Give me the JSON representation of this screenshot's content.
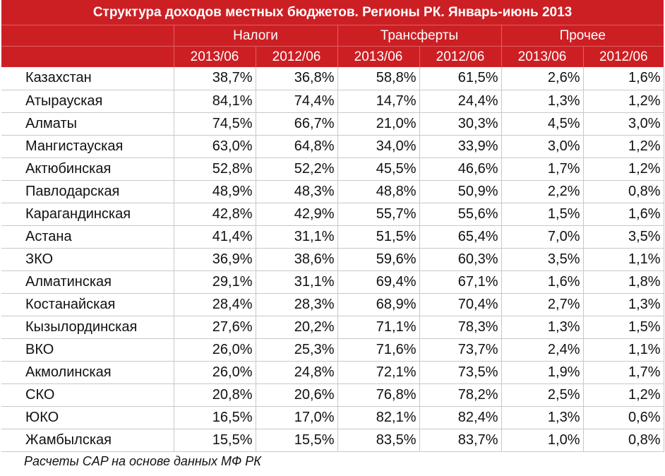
{
  "chart_data": {
    "type": "table",
    "title": "Структура доходов местных бюджетов. Регионы РК. Январь-июнь 2013",
    "groups": [
      "Налоги",
      "Трансферты",
      "Прочее"
    ],
    "periods": [
      "2013/06",
      "2012/06"
    ],
    "columns": [
      "2013/06",
      "2012/06",
      "2013/06",
      "2012/06",
      "2013/06",
      "2012/06"
    ],
    "rows": [
      {
        "region": "Казахстан",
        "values": [
          "38,7%",
          "36,8%",
          "58,8%",
          "61,5%",
          "2,6%",
          "1,6%"
        ]
      },
      {
        "region": "Атырауская",
        "values": [
          "84,1%",
          "74,4%",
          "14,7%",
          "24,4%",
          "1,3%",
          "1,2%"
        ]
      },
      {
        "region": "Алматы",
        "values": [
          "74,5%",
          "66,7%",
          "21,0%",
          "30,3%",
          "4,5%",
          "3,0%"
        ]
      },
      {
        "region": "Мангистауская",
        "values": [
          "63,0%",
          "64,8%",
          "34,0%",
          "33,9%",
          "3,0%",
          "1,2%"
        ]
      },
      {
        "region": "Актюбинская",
        "values": [
          "52,8%",
          "52,2%",
          "45,5%",
          "46,6%",
          "1,7%",
          "1,2%"
        ]
      },
      {
        "region": "Павлодарская",
        "values": [
          "48,9%",
          "48,3%",
          "48,8%",
          "50,9%",
          "2,2%",
          "0,8%"
        ]
      },
      {
        "region": "Карагандинская",
        "values": [
          "42,8%",
          "42,9%",
          "55,7%",
          "55,6%",
          "1,5%",
          "1,6%"
        ]
      },
      {
        "region": "Астана",
        "values": [
          "41,4%",
          "31,1%",
          "51,5%",
          "65,4%",
          "7,0%",
          "3,5%"
        ]
      },
      {
        "region": "ЗКО",
        "values": [
          "36,9%",
          "38,6%",
          "59,6%",
          "60,3%",
          "3,5%",
          "1,1%"
        ]
      },
      {
        "region": "Алматинская",
        "values": [
          "29,1%",
          "31,1%",
          "69,4%",
          "67,1%",
          "1,6%",
          "1,8%"
        ]
      },
      {
        "region": "Костанайская",
        "values": [
          "28,4%",
          "28,3%",
          "68,9%",
          "70,4%",
          "2,7%",
          "1,3%"
        ]
      },
      {
        "region": "Кызылординская",
        "values": [
          "27,6%",
          "20,2%",
          "71,1%",
          "78,3%",
          "1,3%",
          "1,5%"
        ]
      },
      {
        "region": "ВКО",
        "values": [
          "26,0%",
          "25,3%",
          "71,6%",
          "73,7%",
          "2,4%",
          "1,1%"
        ]
      },
      {
        "region": "Акмолинская",
        "values": [
          "26,0%",
          "24,8%",
          "72,1%",
          "73,5%",
          "1,9%",
          "1,7%"
        ]
      },
      {
        "region": "СКО",
        "values": [
          "20,8%",
          "20,6%",
          "76,8%",
          "78,2%",
          "2,5%",
          "1,2%"
        ]
      },
      {
        "region": "ЮКО",
        "values": [
          "16,5%",
          "17,0%",
          "82,1%",
          "82,4%",
          "1,3%",
          "0,6%"
        ]
      },
      {
        "region": "Жамбылская",
        "values": [
          "15,5%",
          "15,5%",
          "83,5%",
          "83,7%",
          "1,0%",
          "0,8%"
        ]
      }
    ],
    "source": "Расчеты CAP на основе данных МФ РК"
  },
  "colors": {
    "header_background": "#cc1f24",
    "header_text": "#ffffff",
    "grid": "#c8c8c8"
  }
}
